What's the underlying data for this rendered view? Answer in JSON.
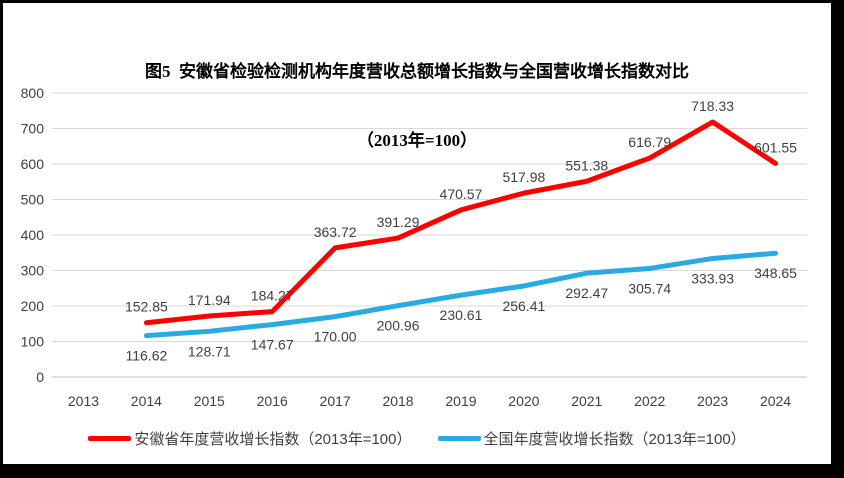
{
  "frame": {
    "background": "#ffffff",
    "border_color": "#000000"
  },
  "title": {
    "line1": "图5  安徽省检验检测机构年度营收总额增长指数与全国营收增长指数对比",
    "line2": "（2013年=100）"
  },
  "chart_data": {
    "type": "line",
    "title": "图5 安徽省检验检测机构年度营收总额增长指数与全国营收增长指数对比（2013年=100）",
    "categories": [
      "2013",
      "2014",
      "2015",
      "2016",
      "2017",
      "2018",
      "2019",
      "2020",
      "2021",
      "2022",
      "2023",
      "2024"
    ],
    "series": [
      {
        "name": "安徽省年度营收增长指数（2013年=100）",
        "color": "#FF0000",
        "label_position": "above",
        "values": [
          null,
          152.85,
          171.94,
          184.27,
          363.72,
          391.29,
          470.57,
          517.98,
          551.38,
          616.79,
          718.33,
          601.55
        ]
      },
      {
        "name": "全国年度营收增长指数（2013年=100）",
        "color": "#29ABE2",
        "label_position": "below",
        "values": [
          null,
          116.62,
          128.71,
          147.67,
          170.0,
          200.96,
          230.61,
          256.41,
          292.47,
          305.74,
          333.93,
          348.65
        ]
      }
    ],
    "xlabel": "",
    "ylabel": "",
    "ylim": [
      0,
      800
    ],
    "y_ticks": [
      0,
      100,
      200,
      300,
      400,
      500,
      600,
      700,
      800
    ],
    "grid": "horizontal",
    "legend_position": "bottom",
    "data_label_decimals": 2,
    "colors": {
      "gridline": "#D9D9D9",
      "axis_line": "#BFBFBF",
      "axis_label": "#404040",
      "data_label": "#404040"
    }
  }
}
